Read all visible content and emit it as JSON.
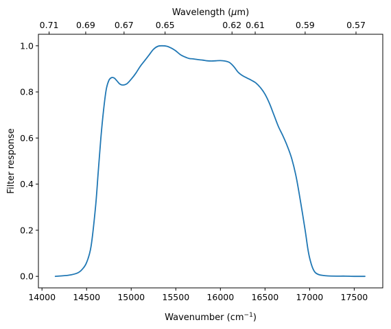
{
  "chart_data": {
    "type": "line",
    "xlabel": "Wavenumber (cm",
    "xlabel_sup": "−1",
    "xlabel_tail": ")",
    "ylabel": "Filter response",
    "top_xlabel_pre": "Wavelength (",
    "top_xlabel_mu": "μ",
    "top_xlabel_post": "m)",
    "xlim": [
      13960,
      17820
    ],
    "ylim": [
      -0.05,
      1.05
    ],
    "xticks": [
      14000,
      14500,
      15000,
      15500,
      16000,
      16500,
      17000,
      17500
    ],
    "xtick_labels": [
      "14000",
      "14500",
      "15000",
      "15500",
      "16000",
      "16500",
      "17000",
      "17500"
    ],
    "yticks": [
      0.0,
      0.2,
      0.4,
      0.6,
      0.8,
      1.0
    ],
    "ytick_labels": [
      "0.0",
      "0.2",
      "0.4",
      "0.6",
      "0.8",
      "1.0"
    ],
    "top_ticks_wavenumber": [
      14080,
      14490,
      14920,
      15380,
      16130,
      16390,
      16950,
      17520
    ],
    "top_tick_labels": [
      "0.71",
      "0.69",
      "0.67",
      "0.65",
      "0.62",
      "0.61",
      "0.59",
      "0.57"
    ],
    "grid": false,
    "series": [
      {
        "color": "#1f77b4",
        "x": [
          14150,
          14300,
          14400,
          14450,
          14500,
          14550,
          14600,
          14630,
          14660,
          14690,
          14720,
          14750,
          14780,
          14810,
          14840,
          14870,
          14900,
          14950,
          15000,
          15050,
          15100,
          15150,
          15200,
          15250,
          15300,
          15350,
          15400,
          15450,
          15500,
          15550,
          15600,
          15650,
          15700,
          15750,
          15800,
          15850,
          15900,
          15950,
          16000,
          16050,
          16100,
          16150,
          16200,
          16250,
          16300,
          16350,
          16400,
          16450,
          16500,
          16550,
          16600,
          16650,
          16700,
          16750,
          16800,
          16850,
          16900,
          16950,
          16980,
          17000,
          17030,
          17060,
          17100,
          17150,
          17200,
          17300,
          17400,
          17500,
          17620
        ],
        "y": [
          0.0,
          0.005,
          0.015,
          0.03,
          0.06,
          0.13,
          0.3,
          0.45,
          0.6,
          0.72,
          0.81,
          0.85,
          0.862,
          0.86,
          0.848,
          0.835,
          0.83,
          0.835,
          0.855,
          0.88,
          0.91,
          0.935,
          0.96,
          0.985,
          0.998,
          1.0,
          0.998,
          0.99,
          0.978,
          0.962,
          0.952,
          0.945,
          0.943,
          0.94,
          0.938,
          0.935,
          0.934,
          0.935,
          0.936,
          0.934,
          0.928,
          0.91,
          0.885,
          0.87,
          0.86,
          0.85,
          0.838,
          0.818,
          0.79,
          0.75,
          0.7,
          0.65,
          0.61,
          0.565,
          0.51,
          0.43,
          0.32,
          0.2,
          0.12,
          0.08,
          0.04,
          0.018,
          0.008,
          0.004,
          0.002,
          0.001,
          0.001,
          0.0,
          0.0
        ]
      }
    ]
  }
}
